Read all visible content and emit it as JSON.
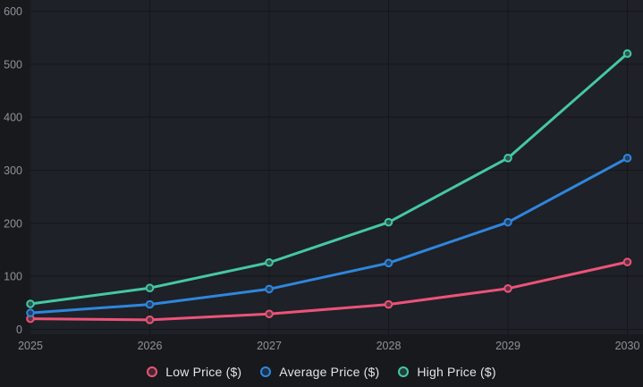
{
  "chart_data": {
    "type": "line",
    "categories": [
      "2025",
      "2026",
      "2027",
      "2028",
      "2029",
      "2030"
    ],
    "series": [
      {
        "name": "Low Price ($)",
        "color": "#ec5378",
        "values": [
          20,
          18,
          29,
          47,
          77,
          127
        ]
      },
      {
        "name": "Average Price ($)",
        "color": "#2f86dd",
        "values": [
          31,
          47,
          76,
          125,
          202,
          323
        ]
      },
      {
        "name": "High Price ($)",
        "color": "#45c7a5",
        "values": [
          48,
          78,
          126,
          202,
          323,
          520
        ]
      }
    ],
    "title": "",
    "xlabel": "",
    "ylabel": "",
    "ylim": [
      0,
      600
    ],
    "y_ticks": [
      600,
      500,
      400,
      300,
      200,
      100,
      0
    ],
    "grid": true,
    "legend_position": "bottom"
  },
  "colors": {
    "background": "#17191d",
    "plot_background": "#1e2127",
    "gridline": "#141619",
    "axis_text": "#8f929a",
    "legend_text": "#e3e4e6"
  }
}
